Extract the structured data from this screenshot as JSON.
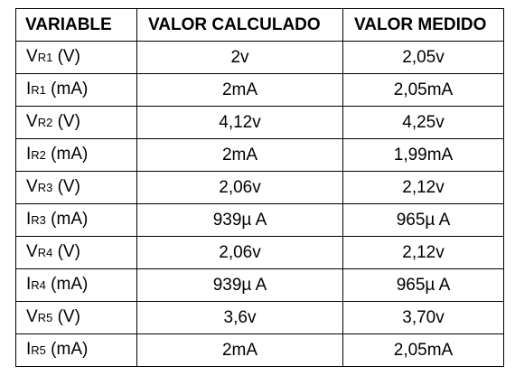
{
  "table": {
    "headers": [
      "VARIABLE",
      "VALOR CALCULADO",
      "VALOR MEDIDO"
    ],
    "rows": [
      {
        "letter": "V",
        "sub": "R1",
        "unit": " (V)",
        "calculated": "2v",
        "measured": "2,05v"
      },
      {
        "letter": "I",
        "sub": "R1",
        "unit": " (mA)",
        "calculated": "2mA",
        "measured": "2,05mA"
      },
      {
        "letter": "V",
        "sub": "R2",
        "unit": " (V)",
        "calculated": "4,12v",
        "measured": "4,25v"
      },
      {
        "letter": "I",
        "sub": "R2",
        "unit": " (mA)",
        "calculated": "2mA",
        "measured": "1,99mA"
      },
      {
        "letter": "V",
        "sub": "R3",
        "unit": " (V)",
        "calculated": "2,06v",
        "measured": "2,12v"
      },
      {
        "letter": "I",
        "sub": "R3",
        "unit": " (mA)",
        "calculated": "939µ A",
        "measured": "965µ A"
      },
      {
        "letter": "V",
        "sub": "R4",
        "unit": " (V)",
        "calculated": "2,06v",
        "measured": "2,12v"
      },
      {
        "letter": "I",
        "sub": "R4",
        "unit": " (mA)",
        "calculated": "939µ A",
        "measured": "965µ A"
      },
      {
        "letter": "V",
        "sub": "R5",
        "unit": " (V)",
        "calculated": "3,6v",
        "measured": "3,70v"
      },
      {
        "letter": "I",
        "sub": "R5",
        "unit": " (mA)",
        "calculated": "2mA",
        "measured": "2,05mA"
      }
    ]
  }
}
